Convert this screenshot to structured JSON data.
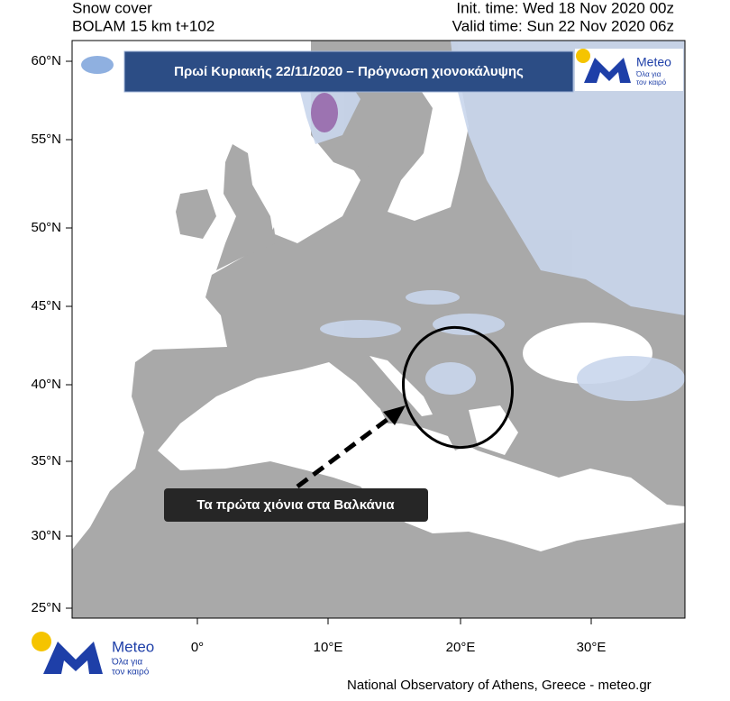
{
  "header": {
    "left_title": "Snow cover",
    "left_subtitle": "BOLAM 15 km t+102",
    "init_time": "Init. time: Wed 18 Nov 2020 00z",
    "valid_time": "Valid time: Sun 22 Nov 2020 06z"
  },
  "banner": {
    "title": "Πρωί Κυριακής 22/11/2020 – Πρόγνωση χιονοκάλυψης"
  },
  "logo": {
    "name": "Meteo",
    "tagline_1": "Όλα για",
    "tagline_2": "τον καιρό"
  },
  "map": {
    "lat_labels": [
      "60°N",
      "55°N",
      "50°N",
      "45°N",
      "40°N",
      "35°N",
      "30°N",
      "25°N"
    ],
    "lon_labels": [
      "0°",
      "10°E",
      "20°E",
      "30°E"
    ],
    "callout": "Τα πρώτα χιόνια στα Βαλκάνια"
  },
  "footer": {
    "credit": "National Observatory of Athens, Greece - meteo.gr"
  }
}
